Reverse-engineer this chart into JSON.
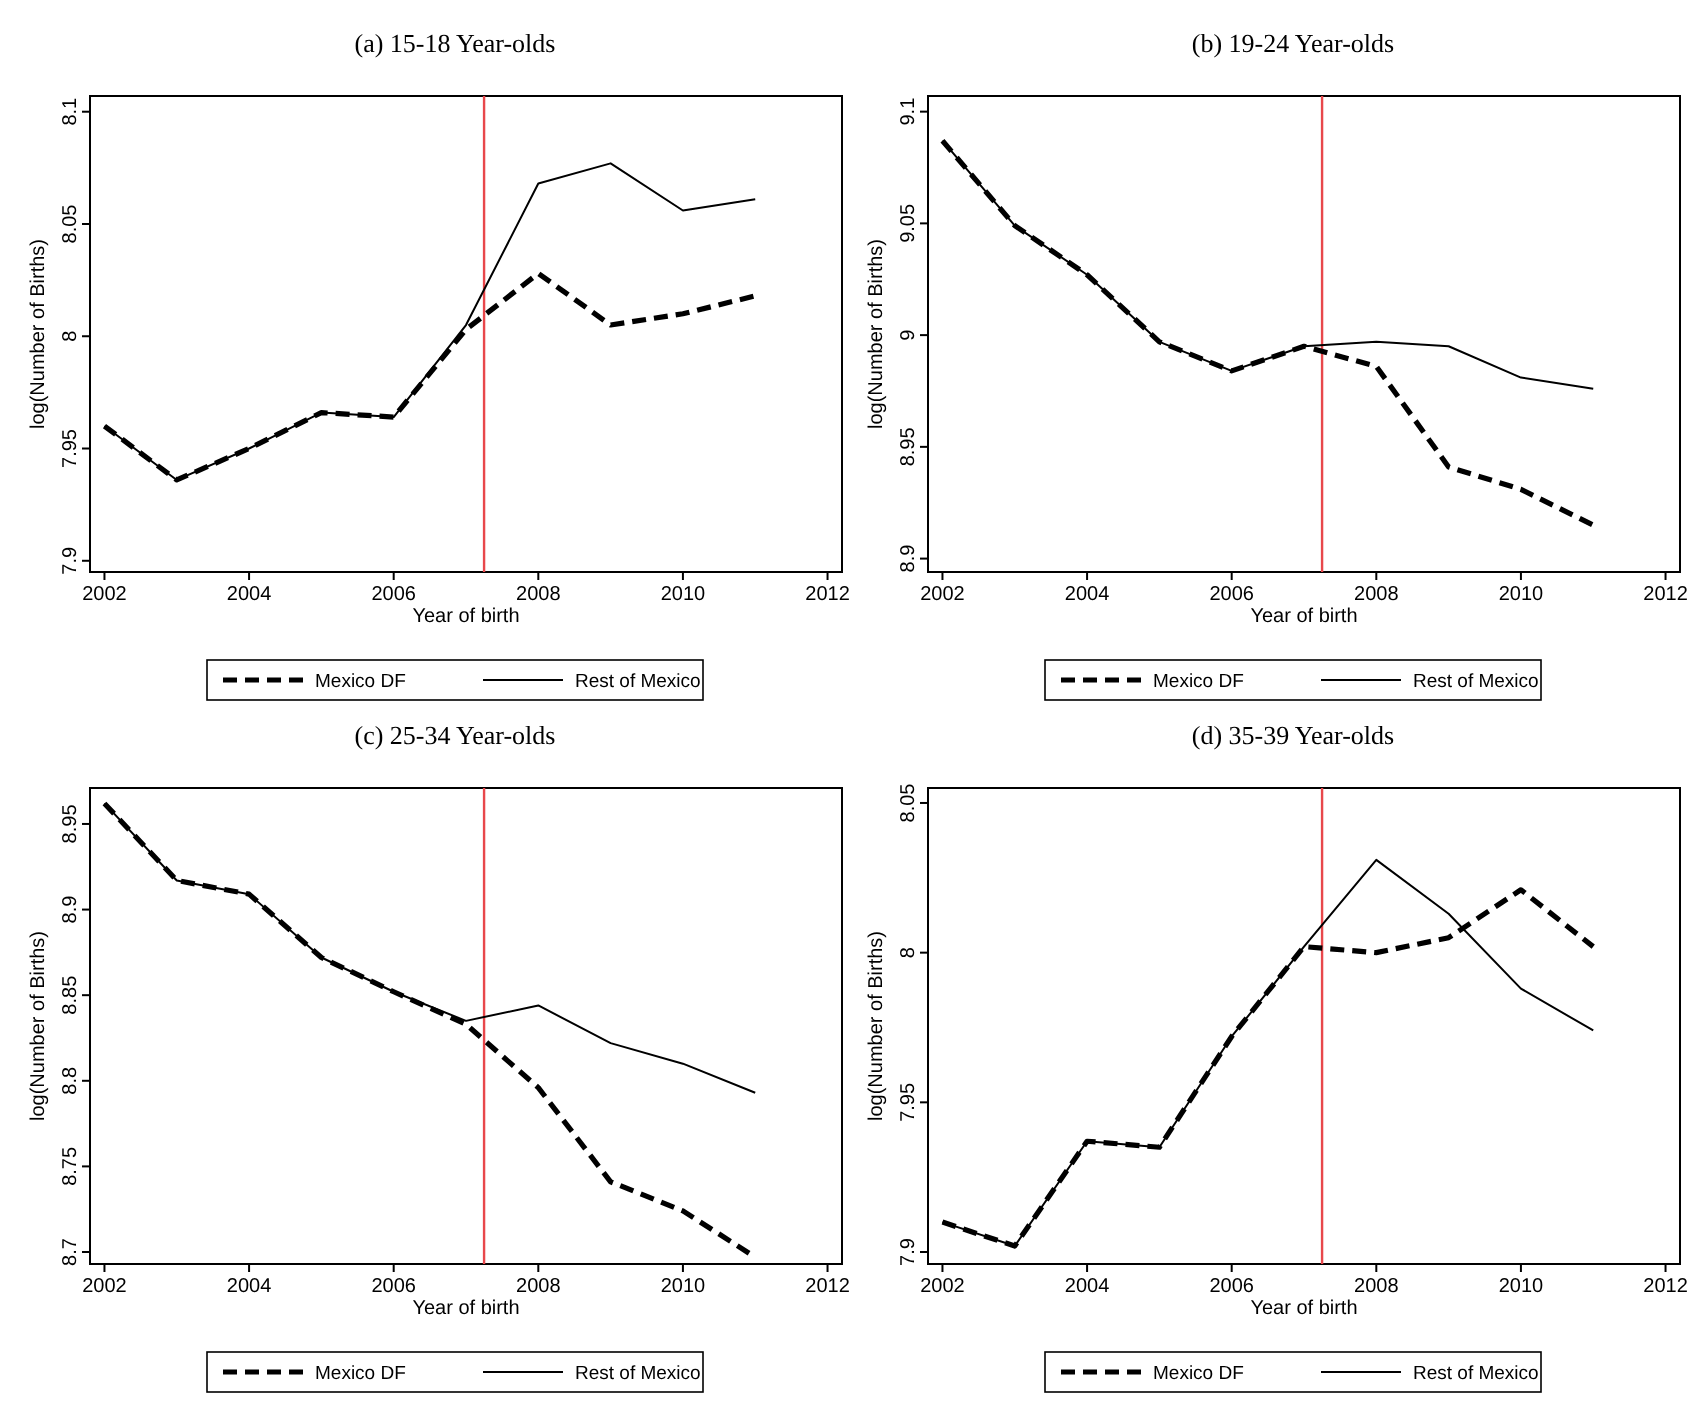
{
  "chart_data": [
    {
      "type": "line",
      "title": "(a) 15-18 Year-olds",
      "xlabel": "Year of birth",
      "ylabel": "log(Number of Births)",
      "x": [
        2002,
        2003,
        2004,
        2005,
        2006,
        2007,
        2008,
        2009,
        2010,
        2011
      ],
      "xlim": [
        2001.8,
        2012.2
      ],
      "xticks": [
        2002,
        2004,
        2006,
        2008,
        2010,
        2012
      ],
      "ylim": [
        7.895,
        8.107
      ],
      "yticks": [
        7.9,
        7.95,
        8,
        8.05,
        8.1
      ],
      "legend": "bottom",
      "grid": false,
      "ref_lines": [
        {
          "axis": "x",
          "value": 2007.25,
          "color": "#e8474b"
        }
      ],
      "series": [
        {
          "name": "Mexico DF",
          "color": "#000000",
          "line_style": "dashed",
          "values": [
            7.96,
            7.936,
            7.95,
            7.966,
            7.964,
            8.003,
            8.028,
            8.005,
            8.01,
            8.018
          ]
        },
        {
          "name": "Rest of Mexico",
          "color": "#000000",
          "line_style": "solid",
          "values": [
            7.96,
            7.936,
            7.95,
            7.966,
            7.964,
            8.005,
            8.068,
            8.077,
            8.056,
            8.061
          ]
        }
      ]
    },
    {
      "type": "line",
      "title": "(b) 19-24 Year-olds",
      "xlabel": "Year of birth",
      "ylabel": "log(Number of Births)",
      "x": [
        2002,
        2003,
        2004,
        2005,
        2006,
        2007,
        2008,
        2009,
        2010,
        2011
      ],
      "xlim": [
        2001.8,
        2012.2
      ],
      "xticks": [
        2002,
        2004,
        2006,
        2008,
        2010,
        2012
      ],
      "ylim": [
        8.894,
        9.107
      ],
      "yticks": [
        8.9,
        8.95,
        9,
        9.05,
        9.1
      ],
      "legend": "bottom",
      "grid": false,
      "ref_lines": [
        {
          "axis": "x",
          "value": 2007.25,
          "color": "#e8474b"
        }
      ],
      "series": [
        {
          "name": "Mexico DF",
          "color": "#000000",
          "line_style": "dashed",
          "values": [
            9.087,
            9.049,
            9.027,
            8.997,
            8.984,
            8.995,
            8.986,
            8.941,
            8.931,
            8.915
          ]
        },
        {
          "name": "Rest of Mexico",
          "color": "#000000",
          "line_style": "solid",
          "values": [
            9.087,
            9.049,
            9.027,
            8.997,
            8.984,
            8.995,
            8.997,
            8.995,
            8.981,
            8.976
          ]
        }
      ]
    },
    {
      "type": "line",
      "title": "(c) 25-34 Year-olds",
      "xlabel": "Year of birth",
      "ylabel": "log(Number of Births)",
      "x": [
        2002,
        2003,
        2004,
        2005,
        2006,
        2007,
        2008,
        2009,
        2010,
        2011
      ],
      "xlim": [
        2001.8,
        2012.2
      ],
      "xticks": [
        2002,
        2004,
        2006,
        2008,
        2010,
        2012
      ],
      "ylim": [
        8.693,
        8.971
      ],
      "yticks": [
        8.7,
        8.75,
        8.8,
        8.85,
        8.9,
        8.95
      ],
      "legend": "bottom",
      "grid": false,
      "ref_lines": [
        {
          "axis": "x",
          "value": 2007.25,
          "color": "#e8474b"
        }
      ],
      "series": [
        {
          "name": "Mexico DF",
          "color": "#000000",
          "line_style": "dashed",
          "values": [
            8.962,
            8.917,
            8.909,
            8.872,
            8.852,
            8.833,
            8.796,
            8.741,
            8.724,
            8.697
          ]
        },
        {
          "name": "Rest of Mexico",
          "color": "#000000",
          "line_style": "solid",
          "values": [
            8.962,
            8.917,
            8.909,
            8.872,
            8.852,
            8.835,
            8.844,
            8.822,
            8.81,
            8.793
          ]
        }
      ]
    },
    {
      "type": "line",
      "title": "(d) 35-39 Year-olds",
      "xlabel": "Year of birth",
      "ylabel": "log(Number of Births)",
      "x": [
        2002,
        2003,
        2004,
        2005,
        2006,
        2007,
        2008,
        2009,
        2010,
        2011
      ],
      "xlim": [
        2001.8,
        2012.2
      ],
      "xticks": [
        2002,
        2004,
        2006,
        2008,
        2010,
        2012
      ],
      "ylim": [
        7.896,
        8.055
      ],
      "yticks": [
        7.9,
        7.95,
        8,
        8.05
      ],
      "legend": "bottom",
      "grid": false,
      "ref_lines": [
        {
          "axis": "x",
          "value": 2007.25,
          "color": "#e8474b"
        }
      ],
      "series": [
        {
          "name": "Mexico DF",
          "color": "#000000",
          "line_style": "dashed",
          "values": [
            7.91,
            7.902,
            7.937,
            7.935,
            7.972,
            8.002,
            8,
            8.005,
            8.021,
            8.002
          ]
        },
        {
          "name": "Rest of Mexico",
          "color": "#000000",
          "line_style": "solid",
          "values": [
            7.91,
            7.902,
            7.937,
            7.935,
            7.972,
            8.002,
            8.031,
            8.013,
            7.988,
            7.974
          ]
        }
      ]
    }
  ]
}
